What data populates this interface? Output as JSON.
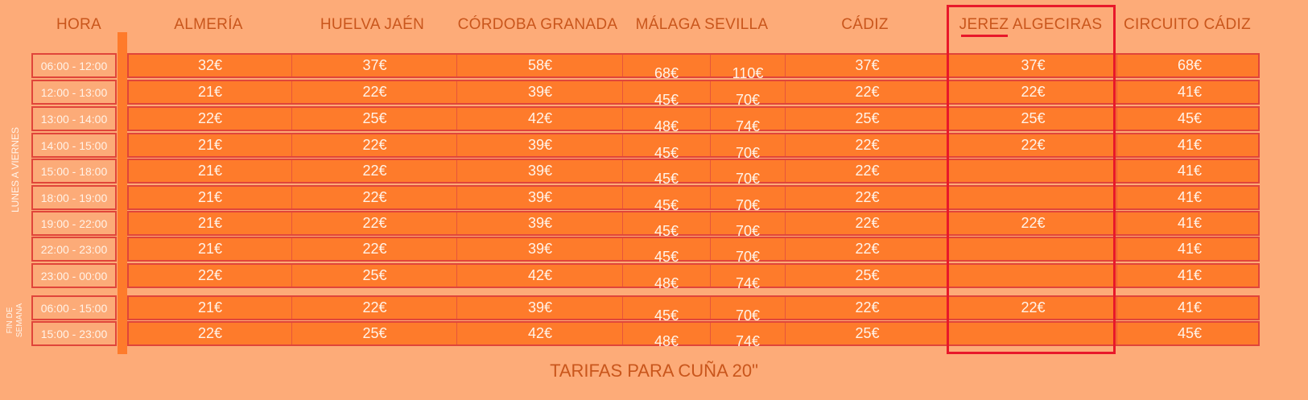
{
  "headers": {
    "hora": "HORA",
    "almeria": "ALMERÍA",
    "huelva_jaen": "HUELVA  JAÉN",
    "cordoba_granada": "CÓRDOBA  GRANADA",
    "malaga_sevilla": "MÁLAGA  SEVILLA",
    "cadiz": "CÁDIZ",
    "jerez_algeciras": "JEREZ  ALGECIRAS",
    "circuito_cadiz": "CIRCUITO CÁDIZ"
  },
  "groups": {
    "weekdays": "LUNES A VIERNES",
    "weekend": "FIN DE SEMANA"
  },
  "rows": [
    {
      "hora": "06:00 - 12:00",
      "v": [
        "32€",
        "37€",
        "58€",
        "68€",
        "110€",
        "37€",
        "37€",
        "68€"
      ]
    },
    {
      "hora": "12:00 - 13:00",
      "v": [
        "21€",
        "22€",
        "39€",
        "45€",
        "70€",
        "22€",
        "22€",
        "41€"
      ]
    },
    {
      "hora": "13:00 - 14:00",
      "v": [
        "22€",
        "25€",
        "42€",
        "48€",
        "74€",
        "25€",
        "25€",
        "45€"
      ]
    },
    {
      "hora": "14:00 - 15:00",
      "v": [
        "21€",
        "22€",
        "39€",
        "45€",
        "70€",
        "22€",
        "22€",
        "41€"
      ]
    },
    {
      "hora": "15:00 - 18:00",
      "v": [
        "21€",
        "22€",
        "39€",
        "45€",
        "70€",
        "22€",
        "",
        "41€"
      ]
    },
    {
      "hora": "18:00 - 19:00",
      "v": [
        "21€",
        "22€",
        "39€",
        "45€",
        "70€",
        "22€",
        "",
        "41€"
      ]
    },
    {
      "hora": "19:00 - 22:00",
      "v": [
        "21€",
        "22€",
        "39€",
        "45€",
        "70€",
        "22€",
        "22€",
        "41€"
      ]
    },
    {
      "hora": "22:00 - 23:00",
      "v": [
        "21€",
        "22€",
        "39€",
        "45€",
        "70€",
        "22€",
        "",
        "41€"
      ]
    },
    {
      "hora": "23:00 - 00:00",
      "v": [
        "22€",
        "25€",
        "42€",
        "48€",
        "74€",
        "25€",
        "",
        "41€"
      ]
    },
    {
      "hora": "06:00 - 15:00",
      "v": [
        "21€",
        "22€",
        "39€",
        "45€",
        "70€",
        "22€",
        "22€",
        "41€"
      ]
    },
    {
      "hora": "15:00 - 23:00",
      "v": [
        "22€",
        "25€",
        "42€",
        "48€",
        "74€",
        "25€",
        "",
        "45€"
      ]
    }
  ],
  "title": "TARIFAS PARA CUÑA 20\"",
  "colors": {
    "background": "#fdab78",
    "cell": "#fe7b2b",
    "header_text": "#c9561c",
    "highlight": "#e8182a"
  }
}
